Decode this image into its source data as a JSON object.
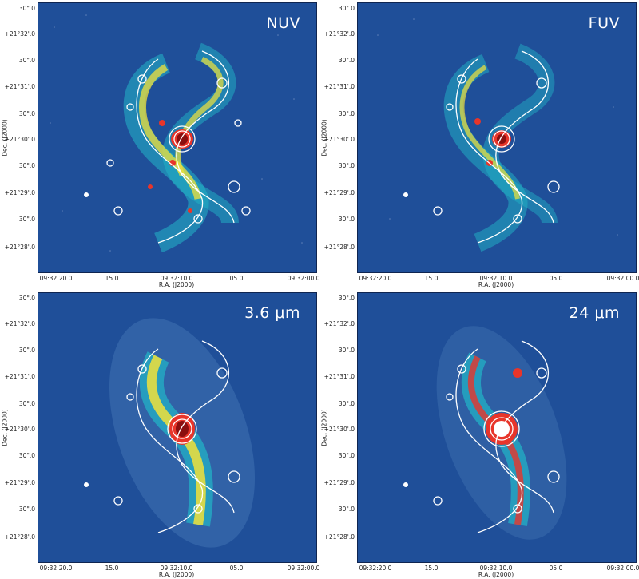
{
  "panels": [
    {
      "key": "nuv",
      "label": "NUV"
    },
    {
      "key": "fuv",
      "label": "FUV"
    },
    {
      "key": "ir",
      "label": "3.6 μm"
    },
    {
      "key": "mir",
      "label": "24 μm"
    }
  ],
  "axes": {
    "dec_ticks": [
      "30\".0",
      "+21°32'.0",
      "30\".0",
      "+21°31'.0",
      "30\".0",
      "+21°30'.0",
      "30\".0",
      "+21°29'.0",
      "30\".0",
      "+21°28'.0"
    ],
    "dec_label": "Dec. (J2000)",
    "ra_ticks": [
      "09:32:20.0",
      "15.0",
      "09:32:10.0",
      "05.0",
      "09:32:00.0"
    ],
    "ra_label": "R.A. (J2000)"
  },
  "colors": {
    "background": "#1f4f99",
    "contour": "#ffffff",
    "low": "#22b6c8",
    "mid": "#f2e23a",
    "high": "#e8352a",
    "peak": "#8b0f0f"
  }
}
